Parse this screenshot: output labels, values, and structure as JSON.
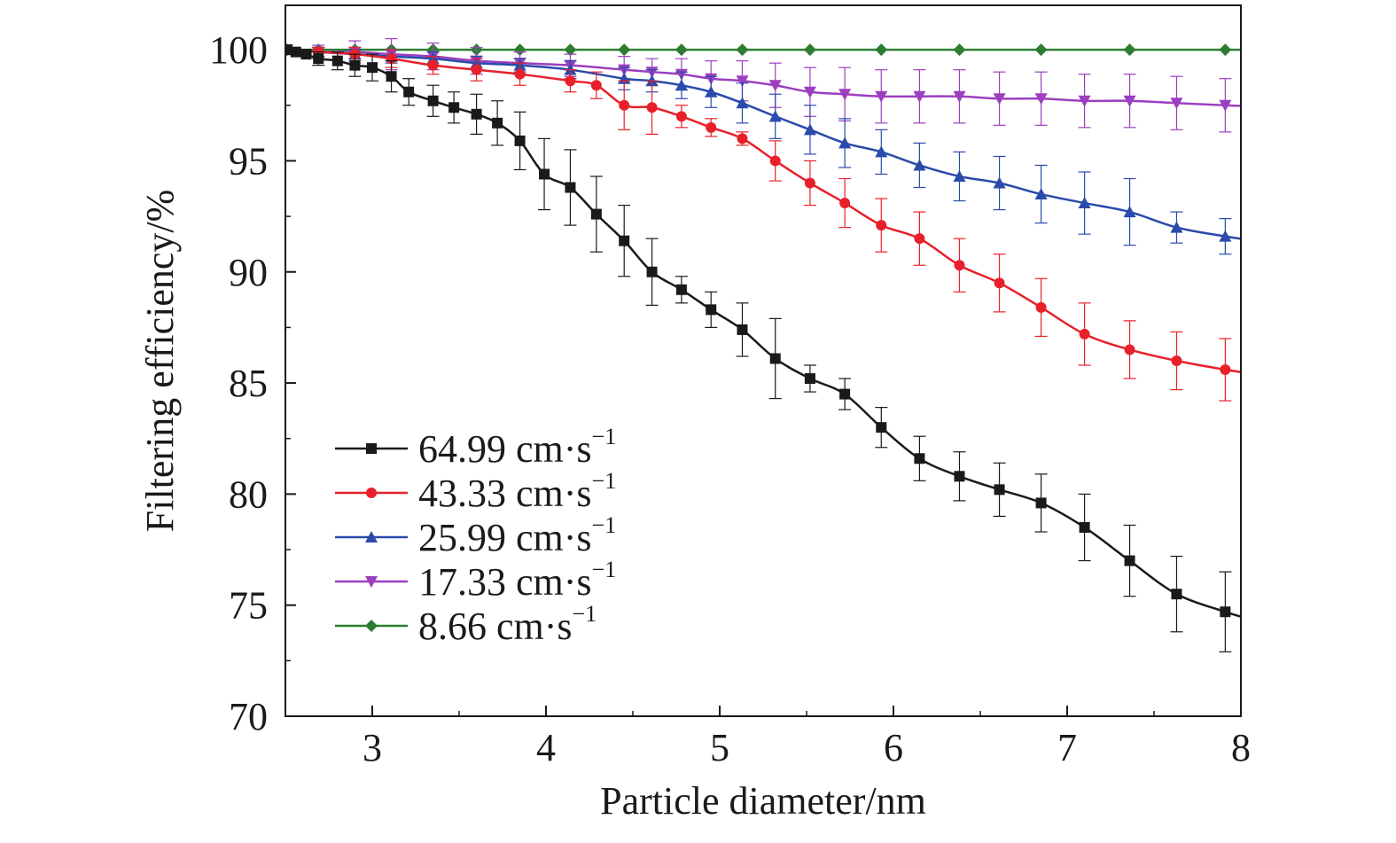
{
  "chart_data": {
    "type": "line",
    "xlabel": "Particle diameter/nm",
    "ylabel": "Filtering efficiency/%",
    "xlim": [
      2.5,
      8
    ],
    "ylim": [
      70,
      102
    ],
    "xticks": [
      "3",
      "4",
      "5",
      "6",
      "7",
      "8"
    ],
    "yticks": [
      "70",
      "75",
      "80",
      "85",
      "90",
      "95",
      "100"
    ],
    "legend_position": "bottom-left",
    "grid": false,
    "series": [
      {
        "name": "64.99 cm·s",
        "name_sup": "−1",
        "color": "#1a1a1a",
        "marker": "square",
        "x": [
          2.51,
          2.56,
          2.62,
          2.69,
          2.8,
          2.9,
          3.0,
          3.11,
          3.21,
          3.35,
          3.47,
          3.6,
          3.72,
          3.85,
          3.99,
          4.14,
          4.29,
          4.45,
          4.61,
          4.78,
          4.95,
          5.13,
          5.32,
          5.52,
          5.72,
          5.93,
          6.15,
          6.38,
          6.61,
          6.85,
          7.1,
          7.36,
          7.63,
          7.91
        ],
        "y": [
          100.0,
          99.9,
          99.8,
          99.6,
          99.5,
          99.3,
          99.2,
          98.8,
          98.1,
          97.7,
          97.4,
          97.1,
          96.7,
          95.9,
          94.4,
          93.8,
          92.6,
          91.4,
          90.0,
          89.2,
          88.3,
          87.4,
          86.1,
          85.2,
          84.5,
          83.0,
          81.6,
          80.8,
          80.2,
          79.6,
          78.5,
          77.0,
          75.5,
          74.7
        ],
        "err": [
          0.1,
          0.1,
          0.1,
          0.3,
          0.4,
          0.5,
          0.6,
          0.7,
          0.6,
          0.7,
          0.7,
          0.9,
          1.0,
          1.3,
          1.6,
          1.7,
          1.7,
          1.6,
          1.5,
          0.6,
          0.8,
          1.2,
          1.8,
          0.6,
          0.7,
          0.9,
          1.0,
          1.1,
          1.2,
          1.3,
          1.5,
          1.6,
          1.7,
          1.8
        ]
      },
      {
        "name": "43.33 cm·s",
        "name_sup": "−1",
        "color": "#e8202a",
        "marker": "circle",
        "x": [
          2.51,
          2.69,
          2.9,
          3.11,
          3.35,
          3.6,
          3.85,
          4.14,
          4.29,
          4.45,
          4.61,
          4.78,
          4.95,
          5.13,
          5.32,
          5.52,
          5.72,
          5.93,
          6.15,
          6.38,
          6.61,
          6.85,
          7.1,
          7.36,
          7.63,
          7.91
        ],
        "y": [
          100.0,
          99.9,
          99.8,
          99.6,
          99.3,
          99.1,
          98.9,
          98.6,
          98.4,
          97.5,
          97.4,
          97.0,
          96.5,
          96.0,
          95.0,
          94.0,
          93.1,
          92.1,
          91.5,
          90.3,
          89.5,
          88.4,
          87.2,
          86.5,
          86.0,
          85.6
        ],
        "err": [
          0.1,
          0.2,
          0.3,
          0.4,
          0.4,
          0.5,
          0.5,
          0.5,
          0.6,
          1.1,
          1.2,
          0.5,
          0.4,
          0.3,
          0.9,
          1.0,
          1.1,
          1.2,
          1.2,
          1.2,
          1.3,
          1.3,
          1.4,
          1.3,
          1.3,
          1.4
        ]
      },
      {
        "name": "25.99 cm·s",
        "name_sup": "−1",
        "color": "#2a4bab",
        "marker": "triangle-up",
        "x": [
          2.51,
          2.69,
          2.9,
          3.11,
          3.35,
          3.6,
          3.85,
          4.14,
          4.45,
          4.61,
          4.78,
          4.95,
          5.13,
          5.32,
          5.52,
          5.72,
          5.93,
          6.15,
          6.38,
          6.61,
          6.85,
          7.1,
          7.36,
          7.63,
          7.91
        ],
        "y": [
          100.0,
          99.9,
          99.8,
          99.7,
          99.6,
          99.4,
          99.3,
          99.1,
          98.7,
          98.6,
          98.4,
          98.1,
          97.6,
          97.0,
          96.4,
          95.8,
          95.4,
          94.8,
          94.3,
          94.0,
          93.5,
          93.1,
          92.7,
          92.0,
          91.6
        ],
        "err": [
          0.1,
          0.2,
          0.2,
          0.3,
          0.3,
          0.3,
          0.3,
          0.4,
          0.5,
          0.5,
          0.6,
          0.7,
          0.9,
          1.0,
          1.1,
          1.1,
          1.0,
          1.0,
          1.1,
          1.2,
          1.3,
          1.4,
          1.5,
          0.7,
          0.8
        ]
      },
      {
        "name": "17.33 cm·s",
        "name_sup": "−1",
        "color": "#9b3fbf",
        "marker": "triangle-down",
        "x": [
          2.51,
          2.69,
          2.9,
          3.11,
          3.35,
          3.6,
          3.85,
          4.14,
          4.45,
          4.61,
          4.78,
          4.95,
          5.13,
          5.32,
          5.52,
          5.72,
          5.93,
          6.15,
          6.38,
          6.61,
          6.85,
          7.1,
          7.36,
          7.63,
          7.91
        ],
        "y": [
          100.0,
          99.9,
          99.9,
          99.8,
          99.7,
          99.5,
          99.4,
          99.3,
          99.1,
          99.0,
          98.9,
          98.7,
          98.6,
          98.4,
          98.1,
          98.0,
          97.9,
          97.9,
          97.9,
          97.8,
          97.8,
          97.7,
          97.7,
          97.6,
          97.5
        ],
        "err": [
          0.1,
          0.3,
          0.5,
          0.7,
          0.6,
          0.6,
          0.5,
          0.5,
          0.6,
          0.6,
          0.7,
          0.8,
          0.9,
          1.0,
          1.1,
          1.2,
          1.2,
          1.2,
          1.2,
          1.2,
          1.2,
          1.2,
          1.2,
          1.2,
          1.2
        ]
      },
      {
        "name": "8.66 cm·s",
        "name_sup": "−1",
        "color": "#2e7d32",
        "marker": "diamond",
        "x": [
          2.51,
          2.69,
          2.9,
          3.11,
          3.35,
          3.6,
          3.85,
          4.14,
          4.45,
          4.78,
          5.13,
          5.52,
          5.93,
          6.38,
          6.85,
          7.36,
          7.91
        ],
        "y": [
          100.0,
          100.0,
          100.0,
          100.0,
          100.0,
          100.0,
          100.0,
          100.0,
          100.0,
          100.0,
          100.0,
          100.0,
          100.0,
          100.0,
          100.0,
          100.0,
          100.0
        ],
        "err": [
          0.05,
          0.05,
          0.05,
          0.05,
          0.05,
          0.05,
          0.05,
          0.05,
          0.05,
          0.05,
          0.05,
          0.05,
          0.05,
          0.05,
          0.05,
          0.05,
          0.05
        ]
      }
    ]
  }
}
